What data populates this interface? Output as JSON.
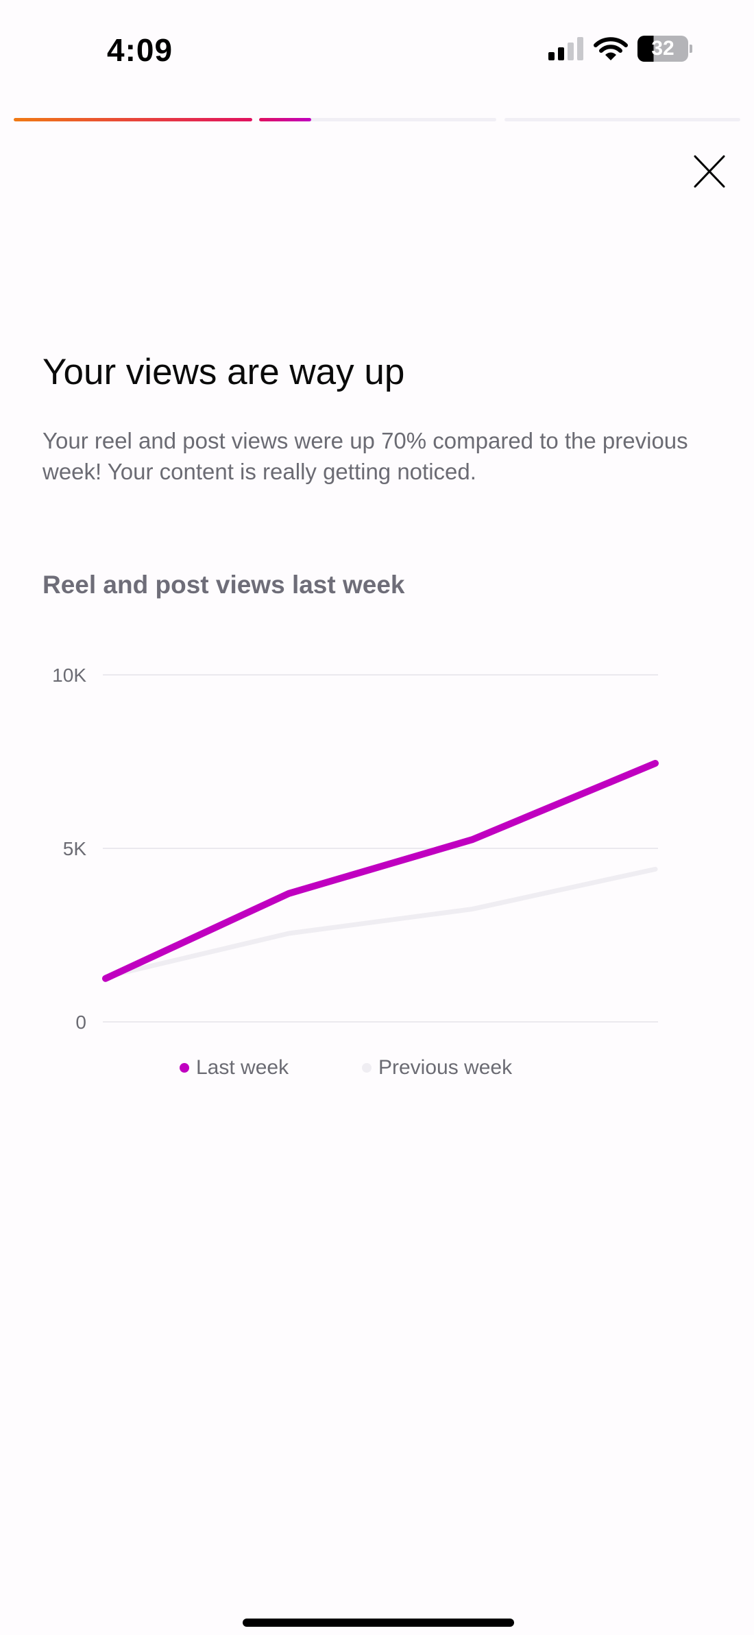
{
  "status_bar": {
    "time": "4:09",
    "battery": "32",
    "icons": [
      "cellular-signal-icon",
      "wifi-icon",
      "battery-icon"
    ]
  },
  "progress": {
    "segments": [
      1.0,
      0.22,
      0,
      0
    ],
    "gradient": [
      "#f07a14",
      "#e0115f",
      "#c000c0"
    ]
  },
  "close_icon": "close-icon",
  "header": {
    "title": "Your views are way up",
    "description": "Your reel and post views were up 70% compared to the previous week! Your content is really getting noticed."
  },
  "chart_data": {
    "type": "line",
    "title": "Reel and post views last week",
    "ylim": [
      0,
      10000
    ],
    "yticks": [
      0,
      5000,
      10000
    ],
    "ytick_labels": [
      "0",
      "5K",
      "10K"
    ],
    "grid": true,
    "legend": "bottom",
    "x": [
      1,
      2,
      3,
      4
    ],
    "series": [
      {
        "name": "Last week",
        "color": "#c000c0",
        "values": [
          1250,
          3700,
          5250,
          7450
        ]
      },
      {
        "name": "Previous week",
        "color": "#efedf2",
        "values": [
          1300,
          2550,
          3250,
          4400
        ]
      }
    ]
  }
}
